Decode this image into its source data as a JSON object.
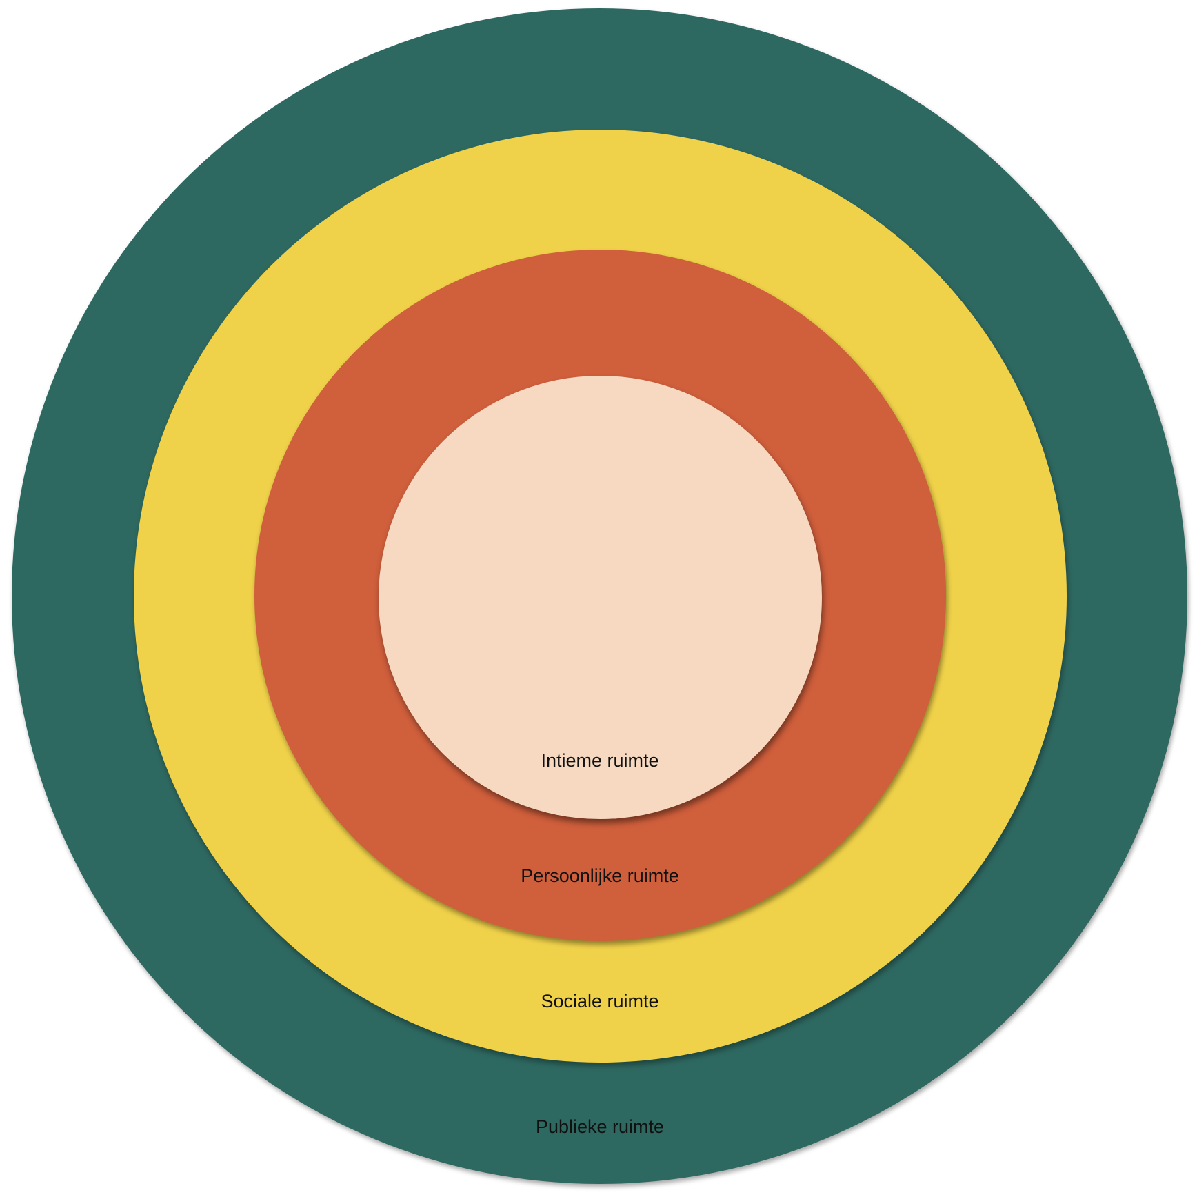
{
  "diagram": {
    "zones": [
      {
        "id": "public",
        "label": "Publieke ruimte",
        "color": "#2e6961"
      },
      {
        "id": "social",
        "label": "Sociale ruimte",
        "color": "#f0d24a"
      },
      {
        "id": "personal",
        "label": "Persoonlijke ruimte",
        "color": "#d05f3c"
      },
      {
        "id": "intimate",
        "label": "Intieme ruimte",
        "color": "#f6d9c0"
      }
    ]
  }
}
